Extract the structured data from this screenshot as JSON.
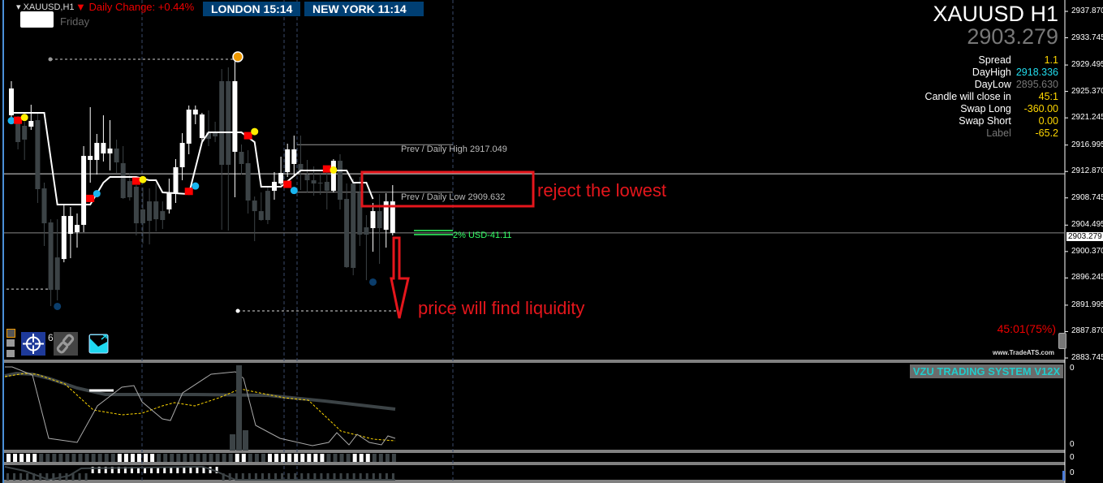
{
  "header": {
    "symbol_label": "XAUUSD,H1",
    "daily_change": "Daily Change: +0.44%",
    "day_label": "Friday",
    "london_label": "LONDON   15:14",
    "newyork_label": "NEW YORK  11:14"
  },
  "info_panel": {
    "title": "XAUUSD H1",
    "price": "2903.279",
    "rows": [
      {
        "label": "Spread",
        "value": "1.1",
        "color": "#ffd700"
      },
      {
        "label": "DayHigh",
        "value": "2918.336",
        "color": "#22ddee"
      },
      {
        "label": "DayLow",
        "value": "2895.630",
        "color": "#777777"
      },
      {
        "label": "Candle will close in",
        "value": "45:1",
        "color": "#ffd700"
      },
      {
        "label": "Swap Long",
        "value": "-360.00",
        "color": "#ffd700"
      },
      {
        "label": "Swap Short",
        "value": "0.00",
        "color": "#ffd700"
      },
      {
        "label": "Label",
        "value": "-65.2",
        "color": "#ffd700"
      }
    ]
  },
  "price_axis": {
    "ticks": [
      "2937.870",
      "2933.745",
      "2929.495",
      "2925.370",
      "2921.245",
      "2916.995",
      "2912.870",
      "2908.745",
      "2904.495",
      "2900.370",
      "2896.245",
      "2891.995",
      "2887.870",
      "2883.745"
    ],
    "current_price": "2903.279"
  },
  "levels": {
    "prev_high_label": "Prev / Daily High 2917.049",
    "prev_high": 2917.049,
    "prev_low_label": "Prev / Daily Low 2909.632",
    "prev_low": 2909.632,
    "usd_label": "2% USD-41.11"
  },
  "annotations": {
    "reject_text": "reject the lowest",
    "liquidity_text": "price will find liquidity",
    "color": "#e5161c"
  },
  "timer": "45:01(75%)",
  "watermark": "www.TradeATS.com",
  "toolbar": {
    "target_count": "6"
  },
  "indicator": {
    "title": "VZU TRADING SYSTEM V12X",
    "zero_labels": [
      "0",
      "0",
      "0",
      "0"
    ]
  },
  "colors": {
    "bull": "#ffffff",
    "bear": "#3c4346",
    "session_box": "#003f73",
    "accent_red": "#e5161c"
  },
  "chart_data": {
    "type": "candlestick",
    "symbol": "XAUUSD",
    "timeframe": "H1",
    "ylim": [
      2883.745,
      2937.87
    ],
    "candles": [
      [
        2921.64,
        2926.97,
        2921.01,
        2925.83
      ],
      [
        2920.88,
        2921.52,
        2916.32,
        2917.46
      ],
      [
        2920.0,
        2920.63,
        2914.67,
        2917.84
      ],
      [
        2919.87,
        2923.29,
        2919.36,
        2920.76
      ],
      [
        2920.88,
        2922.15,
        2907.95,
        2910.11
      ],
      [
        2910.23,
        2911.12,
        2901.23,
        2904.78
      ],
      [
        2904.91,
        2905.41,
        2891.85,
        2894.38
      ],
      [
        2899.45,
        2905.41,
        2892.73,
        2894.38
      ],
      [
        2899.2,
        2907.57,
        2898.69,
        2905.92
      ],
      [
        2903.13,
        2907.32,
        2899.33,
        2905.92
      ],
      [
        2903.39,
        2906.3,
        2900.98,
        2904.53
      ],
      [
        2904.53,
        2916.83,
        2903.39,
        2915.3
      ],
      [
        2914.67,
        2922.91,
        2911.12,
        2915.3
      ],
      [
        2914.67,
        2918.73,
        2912.39,
        2917.33
      ],
      [
        2915.68,
        2921.64,
        2914.42,
        2917.33
      ],
      [
        2915.68,
        2920.88,
        2913.02,
        2916.45
      ],
      [
        2916.45,
        2917.84,
        2912.64,
        2914.29
      ],
      [
        2914.16,
        2916.83,
        2908.58,
        2908.71
      ],
      [
        2911.37,
        2912.64,
        2908.33,
        2908.84
      ],
      [
        2910.49,
        2910.74,
        2902.88,
        2904.78
      ],
      [
        2906.94,
        2910.36,
        2901.61,
        2904.78
      ],
      [
        2908.2,
        2910.23,
        2901.48,
        2905.16
      ],
      [
        2908.2,
        2910.99,
        2903.51,
        2905.41
      ],
      [
        2906.68,
        2908.2,
        2903.89,
        2905.29
      ],
      [
        2906.94,
        2911.75,
        2906.3,
        2909.47
      ],
      [
        2909.47,
        2914.8,
        2907.95,
        2913.53
      ],
      [
        2913.53,
        2918.85,
        2911.5,
        2917.33
      ],
      [
        2917.21,
        2923.17,
        2915.56,
        2922.53
      ],
      [
        2921.77,
        2923.17,
        2920.25,
        2922.53
      ],
      [
        2918.09,
        2922.02,
        2917.33,
        2921.77
      ],
      [
        2918.98,
        2922.41,
        2916.83,
        2917.97
      ],
      [
        2918.98,
        2920.63,
        2917.46,
        2918.35
      ],
      [
        2926.97,
        2928.87,
        2903.77,
        2913.91
      ],
      [
        2926.97,
        2929.13,
        2903.64,
        2913.91
      ],
      [
        2915.94,
        2930.39,
        2908.84,
        2926.97
      ],
      [
        2915.94,
        2917.08,
        2912.39,
        2914.04
      ],
      [
        2914.16,
        2916.19,
        2906.3,
        2908.33
      ],
      [
        2908.33,
        2908.96,
        2901.99,
        2906.68
      ],
      [
        2906.68,
        2909.6,
        2905.16,
        2905.29
      ],
      [
        2909.85,
        2910.49,
        2904.65,
        2905.29
      ],
      [
        2909.85,
        2912.77,
        2908.46,
        2911.25
      ],
      [
        2910.99,
        2915.18,
        2910.74,
        2912.64
      ],
      [
        2912.77,
        2917.21,
        2912.01,
        2916.32
      ],
      [
        2914.04,
        2918.47,
        2912.01,
        2916.32
      ],
      [
        2914.04,
        2918.47,
        2909.98,
        2913.02
      ],
      [
        2912.39,
        2914.67,
        2909.6,
        2911.5
      ],
      [
        2911.5,
        2913.66,
        2909.09,
        2910.99
      ],
      [
        2911.12,
        2912.51,
        2909.22,
        2910.99
      ],
      [
        2911.25,
        2912.9,
        2906.94,
        2909.85
      ],
      [
        2909.85,
        2914.8,
        2909.6,
        2914.54
      ],
      [
        2914.54,
        2915.56,
        2906.94,
        2908.46
      ],
      [
        2908.58,
        2910.99,
        2897.81,
        2897.93
      ],
      [
        2910.99,
        2911.75,
        2896.66,
        2897.81
      ],
      [
        2909.6,
        2912.01,
        2901.23,
        2903.0
      ],
      [
        2904.15,
        2906.05,
        2895.9,
        2903.0
      ],
      [
        2904.02,
        2907.95,
        2900.34,
        2906.68
      ],
      [
        2906.68,
        2909.34,
        2898.44,
        2904.02
      ],
      [
        2903.77,
        2909.47,
        2900.98,
        2908.2
      ],
      [
        2903.28,
        2910.74,
        2902.88,
        2908.2
      ]
    ],
    "trend_line": [
      [
        0,
        2922.02
      ],
      [
        5,
        2922.02
      ],
      [
        7,
        2907.7
      ],
      [
        12,
        2907.7
      ],
      [
        14,
        2911.12
      ],
      [
        15,
        2912.01
      ],
      [
        19,
        2912.01
      ],
      [
        21,
        2911.5
      ],
      [
        22,
        2911.5
      ],
      [
        23,
        2909.6
      ],
      [
        27,
        2909.34
      ],
      [
        29,
        2917.46
      ],
      [
        30,
        2918.98
      ],
      [
        35,
        2918.98
      ],
      [
        37,
        2917.46
      ],
      [
        38,
        2910.49
      ],
      [
        41,
        2910.49
      ],
      [
        44,
        2913.02
      ],
      [
        51,
        2913.02
      ],
      [
        52,
        2911.12
      ],
      [
        54,
        2911.12
      ],
      [
        55,
        2908.58
      ]
    ],
    "signals": [
      {
        "i": 0,
        "price": 2920.8,
        "type": "cyan"
      },
      {
        "i": 1,
        "price": 2920.8,
        "type": "red"
      },
      {
        "i": 2,
        "price": 2921.3,
        "type": "yellow"
      },
      {
        "i": 12,
        "price": 2908.6,
        "type": "red"
      },
      {
        "i": 13,
        "price": 2909.4,
        "type": "cyan"
      },
      {
        "i": 19,
        "price": 2911.3,
        "type": "red"
      },
      {
        "i": 20,
        "price": 2911.6,
        "type": "yellow"
      },
      {
        "i": 27,
        "price": 2909.7,
        "type": "red"
      },
      {
        "i": 28,
        "price": 2910.6,
        "type": "cyan"
      },
      {
        "i": 36,
        "price": 2918.4,
        "type": "red"
      },
      {
        "i": 37,
        "price": 2919.1,
        "type": "yellow"
      },
      {
        "i": 42,
        "price": 2910.8,
        "type": "red"
      },
      {
        "i": 43,
        "price": 2909.9,
        "type": "cyan"
      },
      {
        "i": 48,
        "price": 2913.2,
        "type": "red"
      },
      {
        "i": 49,
        "price": 2913.1,
        "type": "yellow"
      },
      {
        "i": 7,
        "price": 2891.8,
        "type": "navy"
      },
      {
        "i": 55,
        "price": 2895.6,
        "type": "navy"
      }
    ],
    "dashed_levels": [
      2930.39,
      2891.1,
      2894.5
    ],
    "current_price_line": 2903.279,
    "reference_line": 2912.51
  }
}
